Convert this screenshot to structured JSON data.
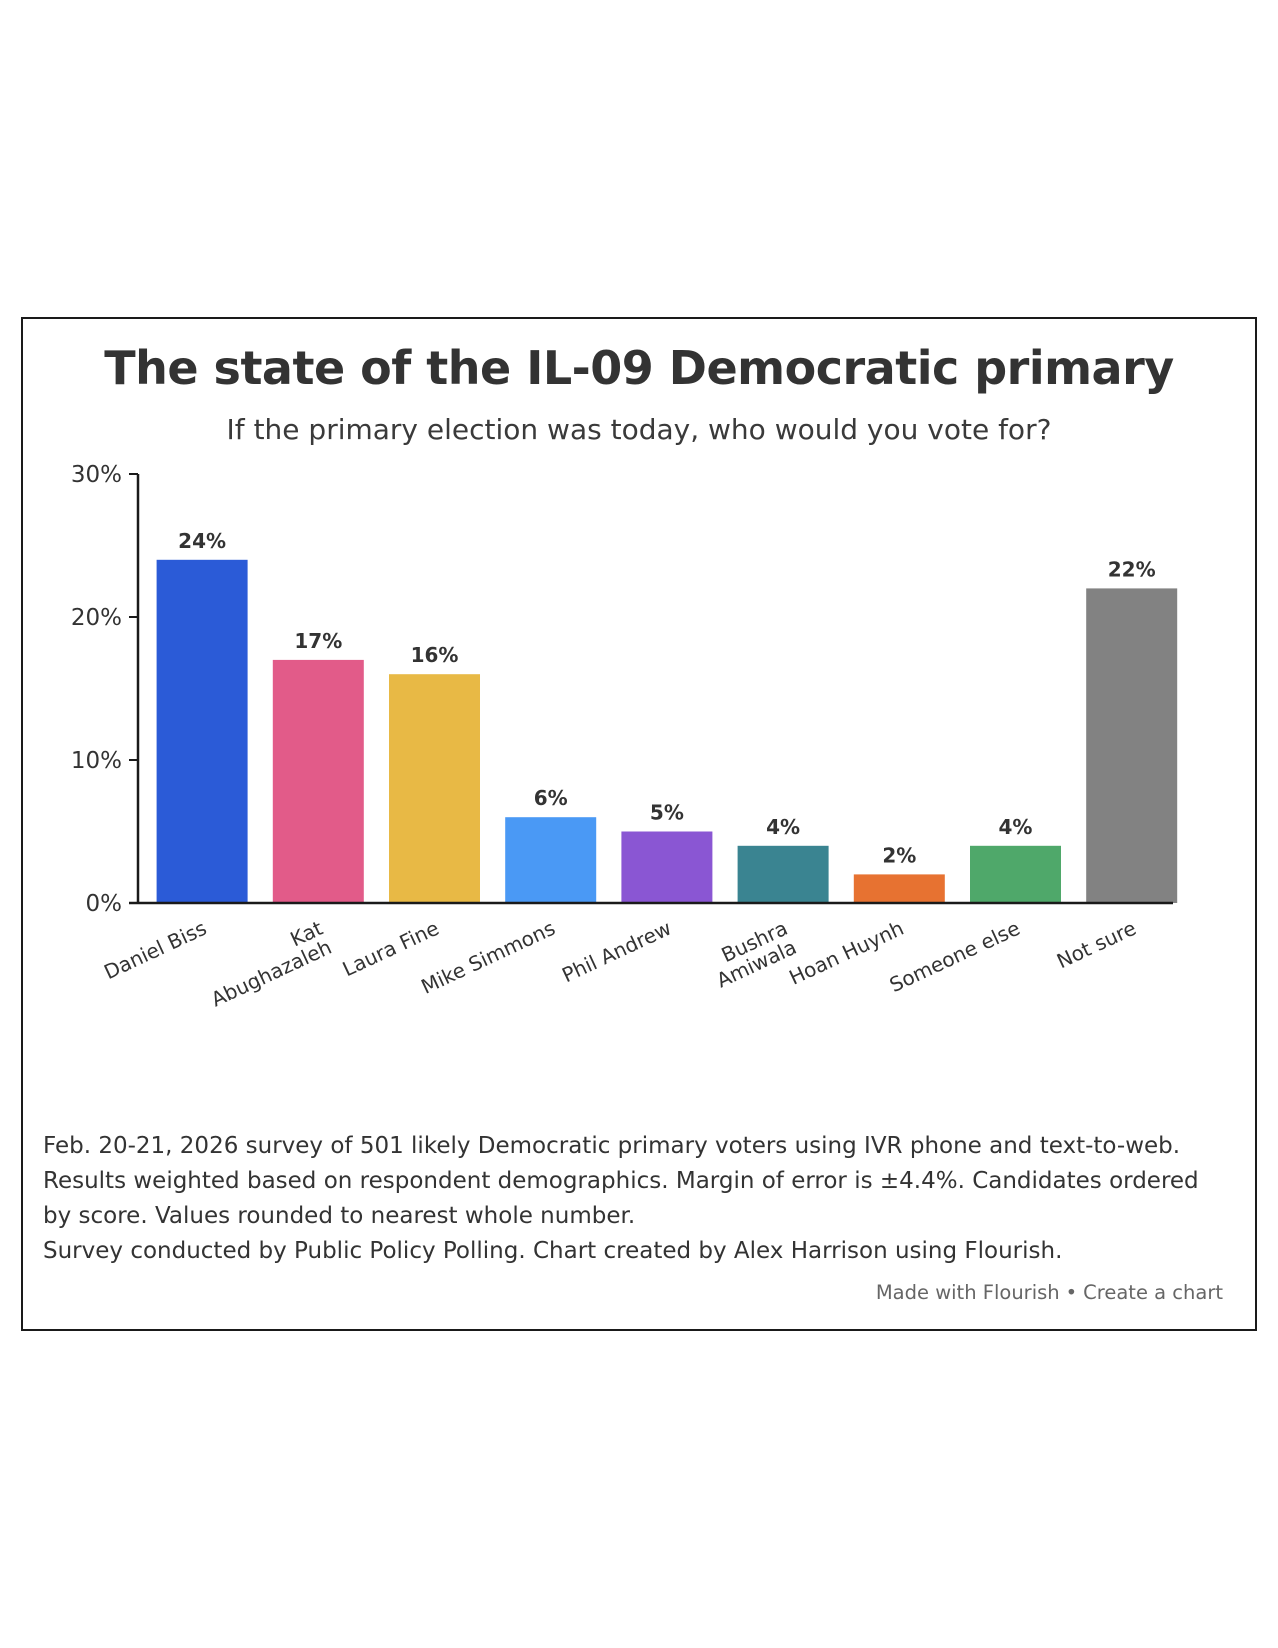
{
  "chart_data": {
    "type": "bar",
    "title": "The state of the IL-09 Democratic primary",
    "subtitle": "If the primary election was today, who would you vote for?",
    "categories": [
      "Daniel Biss",
      "Kat Abughazaleh",
      "Laura Fine",
      "Mike Simmons",
      "Phil Andrew",
      "Bushra Amiwala",
      "Hoan Huynh",
      "Someone else",
      "Not sure"
    ],
    "category_lines": [
      [
        "Daniel Biss"
      ],
      [
        "Kat",
        "Abughazaleh"
      ],
      [
        "Laura Fine"
      ],
      [
        "Mike Simmons"
      ],
      [
        "Phil Andrew"
      ],
      [
        "Bushra",
        "Amiwala"
      ],
      [
        "Hoan Huynh"
      ],
      [
        "Someone else"
      ],
      [
        "Not sure"
      ]
    ],
    "values": [
      24,
      17,
      16,
      6,
      5,
      4,
      2,
      4,
      22
    ],
    "value_labels": [
      "24%",
      "17%",
      "16%",
      "6%",
      "5%",
      "4%",
      "2%",
      "4%",
      "22%"
    ],
    "colors": [
      "#2b5bd7",
      "#e25b89",
      "#e8b945",
      "#4a99f5",
      "#8a56d3",
      "#3a8491",
      "#e77231",
      "#4fa86a",
      "#828282"
    ],
    "yticks": [
      0,
      10,
      20,
      30
    ],
    "ytick_labels": [
      "0%",
      "10%",
      "20%",
      "30%"
    ],
    "ylim": [
      0,
      30
    ],
    "xlabel": "",
    "ylabel": "",
    "grid": false,
    "legend": "none"
  },
  "footnote": {
    "line1": "Feb. 20-21, 2026 survey of 501 likely Democratic primary voters using IVR phone and text-to-web.",
    "line2": "Results weighted based on respondent demographics. Margin of error is ±4.4%. Candidates ordered by score. Values rounded to nearest whole number.",
    "line3": "Survey conducted by Public Policy Polling. Chart created by Alex Harrison using Flourish."
  },
  "credits": {
    "made_with": "Made with Flourish",
    "separator": "•",
    "create": "Create a chart"
  }
}
